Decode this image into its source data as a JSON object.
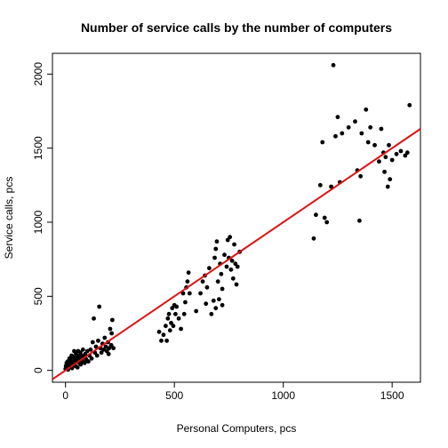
{
  "chart_data": {
    "type": "scatter",
    "title": "Number of service calls by the number of computers",
    "x_label": "Personal Computers, pcs",
    "y_label": "Service calls, pcs",
    "xlim": [
      -60,
      1630
    ],
    "ylim": [
      -80,
      2140
    ],
    "xticks": [
      0,
      500,
      1000,
      1500
    ],
    "yticks": [
      0,
      500,
      1000,
      1500,
      2000
    ],
    "point_color": "#000000",
    "regression": {
      "intercept": 0,
      "slope": 1.0,
      "color": "#dd1111"
    },
    "x": [
      0,
      2,
      5,
      8,
      10,
      12,
      15,
      18,
      20,
      22,
      25,
      28,
      30,
      32,
      35,
      38,
      40,
      42,
      45,
      48,
      50,
      52,
      55,
      58,
      60,
      62,
      65,
      68,
      70,
      72,
      75,
      78,
      80,
      85,
      88,
      90,
      95,
      100,
      105,
      110,
      115,
      120,
      125,
      130,
      135,
      140,
      145,
      150,
      155,
      160,
      165,
      170,
      175,
      180,
      185,
      190,
      195,
      200,
      205,
      210,
      215,
      220,
      212,
      198,
      430,
      440,
      450,
      460,
      465,
      470,
      475,
      480,
      485,
      490,
      495,
      500,
      505,
      510,
      520,
      530,
      540,
      545,
      550,
      555,
      560,
      565,
      570,
      600,
      620,
      630,
      640,
      645,
      650,
      660,
      670,
      680,
      685,
      690,
      695,
      700,
      705,
      710,
      715,
      720,
      730,
      740,
      745,
      750,
      755,
      760,
      765,
      770,
      775,
      780,
      785,
      790,
      800,
      720,
      690,
      1140,
      1150,
      1170,
      1180,
      1190,
      1200,
      1220,
      1230,
      1240,
      1250,
      1260,
      1270,
      1300,
      1330,
      1340,
      1350,
      1355,
      1360,
      1380,
      1390,
      1400,
      1420,
      1440,
      1450,
      1460,
      1465,
      1470,
      1480,
      1485,
      1490,
      1500,
      1520,
      1540,
      1560,
      1570,
      1580
    ],
    "y": [
      10,
      30,
      50,
      20,
      60,
      5,
      40,
      80,
      25,
      70,
      50,
      100,
      15,
      60,
      90,
      40,
      130,
      70,
      30,
      110,
      60,
      85,
      20,
      130,
      95,
      50,
      70,
      120,
      40,
      100,
      80,
      60,
      140,
      90,
      50,
      110,
      75,
      130,
      60,
      100,
      140,
      80,
      190,
      350,
      120,
      160,
      100,
      200,
      430,
      150,
      120,
      180,
      140,
      220,
      160,
      130,
      190,
      150,
      280,
      170,
      340,
      150,
      250,
      110,
      260,
      200,
      240,
      300,
      200,
      350,
      380,
      270,
      320,
      420,
      300,
      440,
      380,
      430,
      350,
      280,
      520,
      380,
      460,
      560,
      600,
      660,
      520,
      400,
      520,
      600,
      640,
      450,
      560,
      690,
      380,
      470,
      760,
      820,
      870,
      600,
      480,
      720,
      650,
      550,
      780,
      700,
      880,
      760,
      900,
      680,
      740,
      620,
      850,
      720,
      580,
      700,
      800,
      440,
      420,
      890,
      1050,
      1250,
      1540,
      1030,
      1000,
      1240,
      2060,
      1580,
      1710,
      1270,
      1600,
      1640,
      1680,
      1350,
      1010,
      1310,
      1600,
      1760,
      1540,
      1640,
      1520,
      1410,
      1630,
      1470,
      1340,
      1440,
      1240,
      1520,
      1290,
      1420,
      1460,
      1480,
      1450,
      1470,
      1790
    ]
  }
}
